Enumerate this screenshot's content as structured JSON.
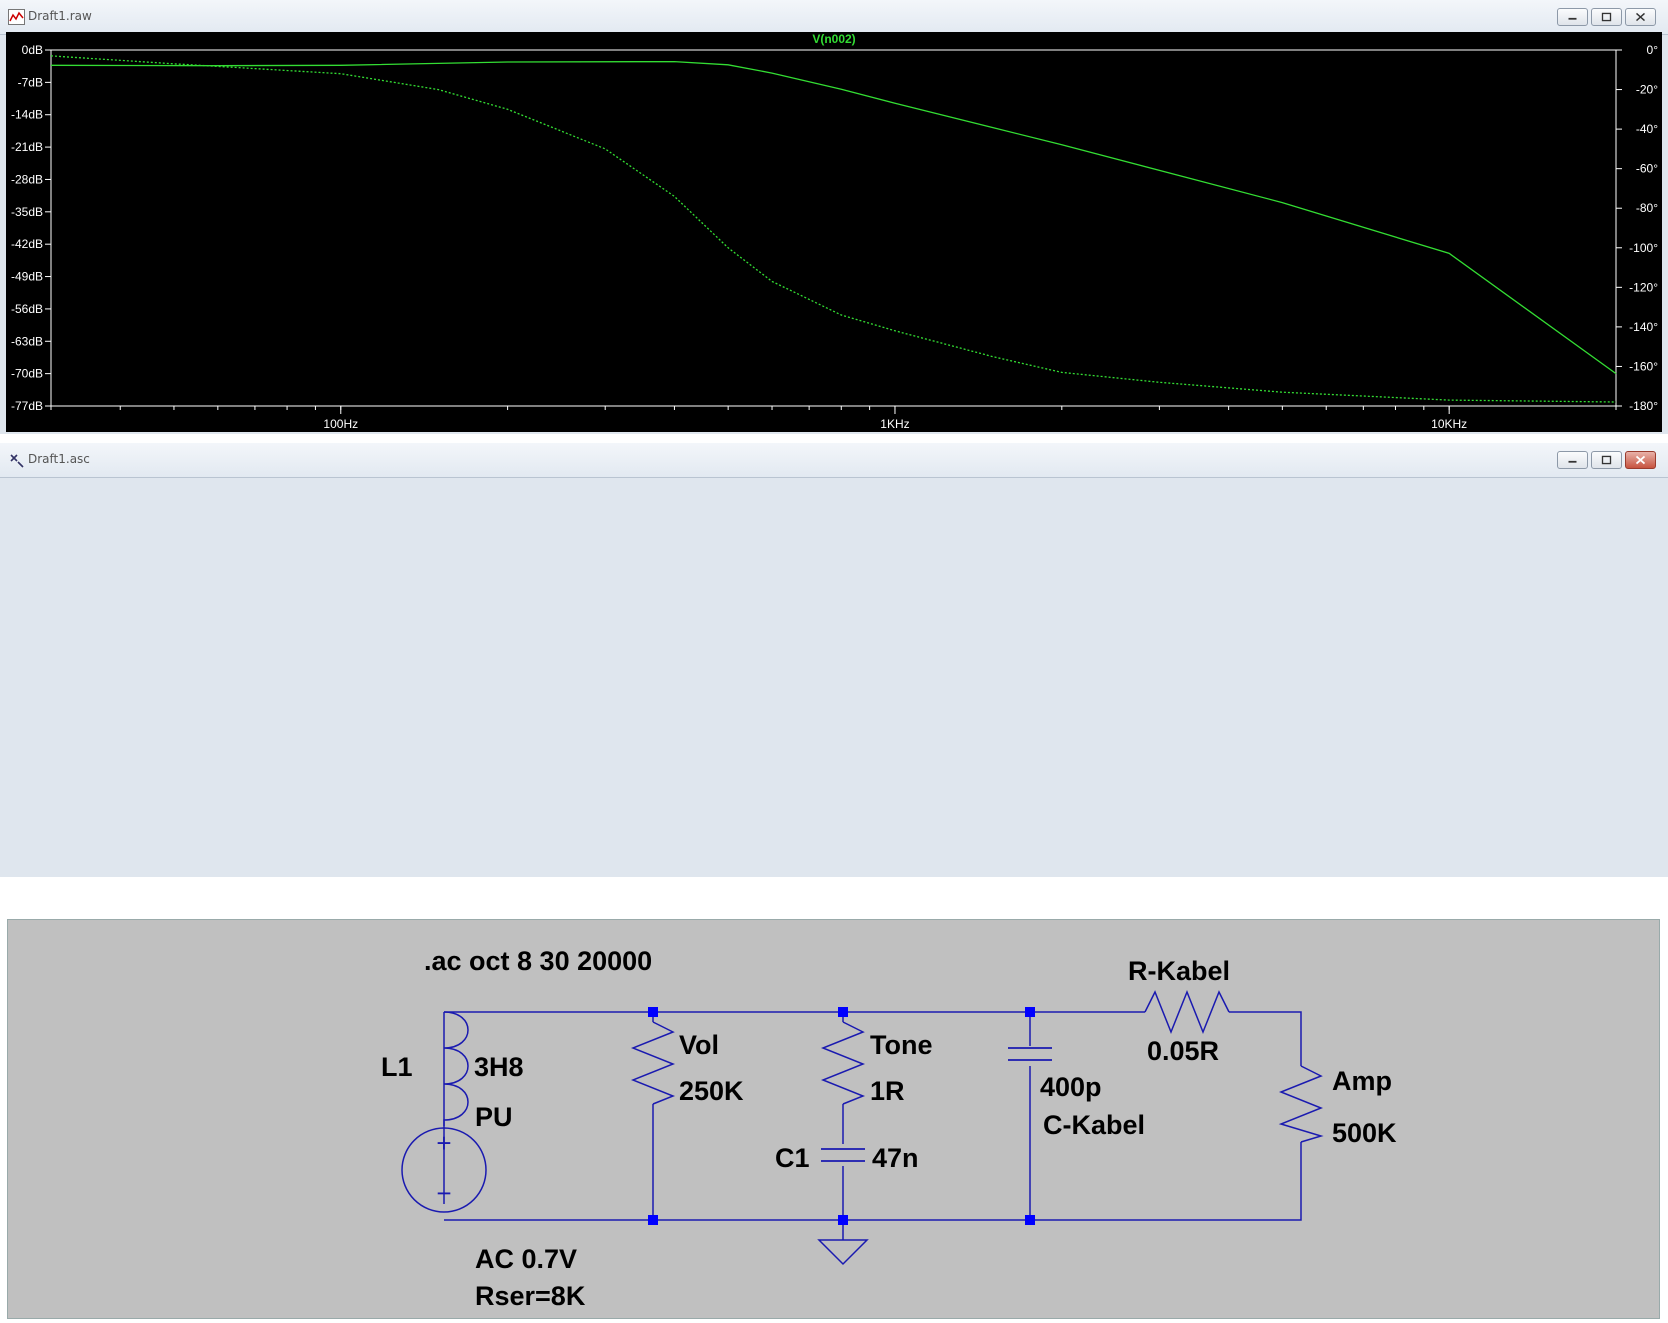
{
  "plot_window": {
    "title": "Draft1.raw",
    "trace_label": "V(n002)",
    "colors": {
      "background": "#000000",
      "trace": "#33dd33",
      "axis": "#ffffff",
      "label": "#ffffff",
      "trace_label": "#33dd33"
    }
  },
  "chart_data": {
    "type": "line",
    "title": "V(n002)",
    "x_scale": "log",
    "xlim": [
      30,
      20000
    ],
    "ylim_left": [
      -77,
      0
    ],
    "ylim_right": [
      -180,
      0
    ],
    "x_ticks": [
      {
        "value": 100,
        "label": "100Hz"
      },
      {
        "value": 1000,
        "label": "1KHz"
      },
      {
        "value": 10000,
        "label": "10KHz"
      }
    ],
    "y_left_ticks": [
      {
        "value": 0,
        "label": "0dB"
      },
      {
        "value": -7,
        "label": "-7dB"
      },
      {
        "value": -14,
        "label": "-14dB"
      },
      {
        "value": -21,
        "label": "-21dB"
      },
      {
        "value": -28,
        "label": "-28dB"
      },
      {
        "value": -35,
        "label": "-35dB"
      },
      {
        "value": -42,
        "label": "-42dB"
      },
      {
        "value": -49,
        "label": "-49dB"
      },
      {
        "value": -56,
        "label": "-56dB"
      },
      {
        "value": -63,
        "label": "-63dB"
      },
      {
        "value": -70,
        "label": "-70dB"
      },
      {
        "value": -77,
        "label": "-77dB"
      }
    ],
    "y_right_ticks": [
      {
        "value": 0,
        "label": "0°"
      },
      {
        "value": -20,
        "label": "-20°"
      },
      {
        "value": -40,
        "label": "-40°"
      },
      {
        "value": -60,
        "label": "-60°"
      },
      {
        "value": -80,
        "label": "-80°"
      },
      {
        "value": -100,
        "label": "-100°"
      },
      {
        "value": -120,
        "label": "-120°"
      },
      {
        "value": -140,
        "label": "-140°"
      },
      {
        "value": -160,
        "label": "-160°"
      },
      {
        "value": -180,
        "label": "-180°"
      }
    ],
    "series": [
      {
        "name": "V(n002)",
        "style": "solid",
        "axis": "left",
        "x": [
          30,
          60,
          100,
          200,
          400,
          500,
          600,
          800,
          1000,
          2000,
          5000,
          10000,
          20000
        ],
        "values": [
          -3.3,
          -3.4,
          -3.3,
          -2.6,
          -2.5,
          -3.2,
          -5.0,
          -8.5,
          -11.5,
          -20.5,
          -33.0,
          -44.0,
          -70.0
        ]
      },
      {
        "name": "V(n002) phase",
        "style": "dashed",
        "axis": "right",
        "x": [
          30,
          50,
          100,
          150,
          200,
          300,
          400,
          500,
          600,
          800,
          1000,
          1500,
          2000,
          3000,
          5000,
          10000,
          20000
        ],
        "values": [
          -3,
          -7,
          -12,
          -20,
          -30,
          -50,
          -74,
          -100,
          -117,
          -134,
          -142,
          -155,
          -163,
          -168,
          -173,
          -177,
          -178
        ]
      }
    ]
  },
  "schematic_window": {
    "title": "Draft1.asc",
    "colors": {
      "background": "#c0c0c0",
      "wire": "#1a1ab0",
      "junction": "#0000ff",
      "text": "#000000"
    },
    "directive": ".ac oct 8 30 20000",
    "components": {
      "l1_name": "L1",
      "l1_value": "3H8",
      "source_name": "PU",
      "source_value": "AC 0.7V",
      "source_rser": "Rser=8K",
      "vol_name": "Vol",
      "vol_value": "250K",
      "tone_name": "Tone",
      "tone_value": "1R",
      "c1_name": "C1",
      "c1_value": "47n",
      "ckabel_value": "400p",
      "ckabel_name": "C-Kabel",
      "rkabel_name": "R-Kabel",
      "rkabel_value": "0.05R",
      "amp_name": "Amp",
      "amp_value": "500K",
      "plus_sign": "+",
      "minus_sign": "−"
    }
  }
}
